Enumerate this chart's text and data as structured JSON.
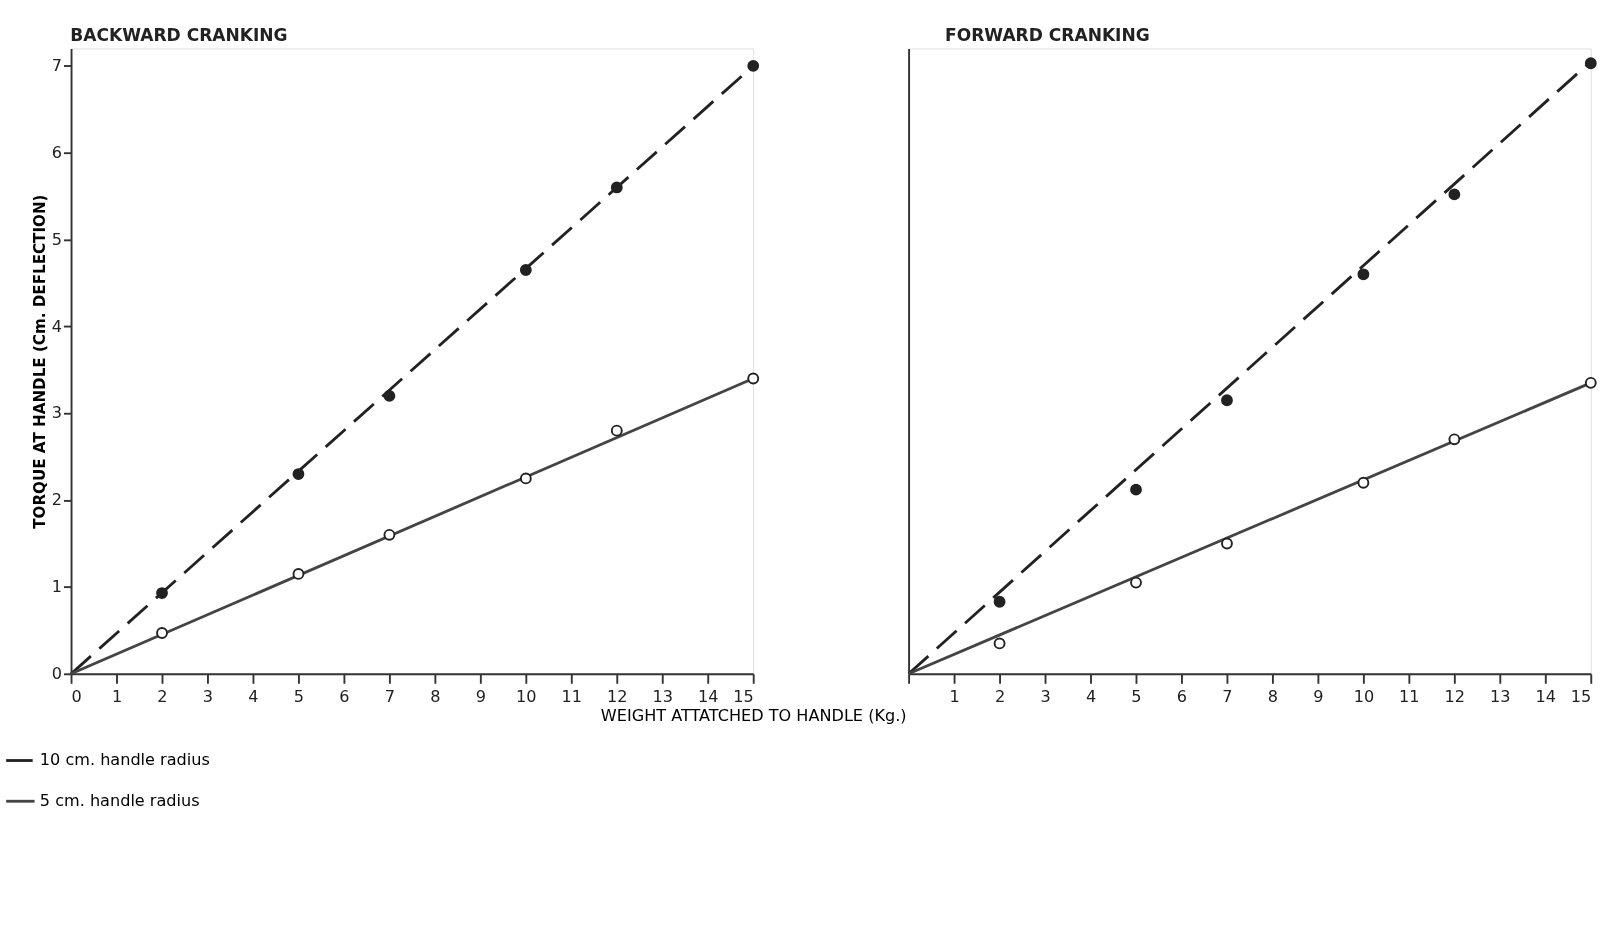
{
  "chart_data": [
    {
      "type": "scatter",
      "title": "BACKWARD CRANKING",
      "xlabel": "WEIGHT ATTATCHED TO HANDLE (Kg.)",
      "ylabel": "TORQUE AT HANDLE (Cm. DEFLECTION)",
      "xlim": [
        0,
        15
      ],
      "ylim": [
        0,
        7.2
      ],
      "xticks": [
        0,
        1,
        2,
        3,
        4,
        5,
        6,
        7,
        8,
        9,
        10,
        11,
        12,
        13,
        14,
        15
      ],
      "yticks": [
        0,
        1,
        2,
        3,
        4,
        5,
        6,
        7
      ],
      "grid": false,
      "legend": "bottom left",
      "series": [
        {
          "type": "line",
          "name": "10 cm. handle radius",
          "color": "#222222",
          "line_style": "dashed",
          "x": [
            0,
            15
          ],
          "values": [
            0,
            7.0
          ]
        },
        {
          "type": "line",
          "name": "5 cm. handle radius",
          "color": "#444444",
          "line_style": "solid",
          "x": [
            0,
            15
          ],
          "values": [
            0,
            3.4
          ]
        },
        {
          "marker": "circle",
          "color": "#222222",
          "x": [
            2,
            5,
            7,
            10,
            12,
            15
          ],
          "values": [
            0.93,
            2.3,
            3.2,
            4.65,
            5.6,
            7.0
          ]
        },
        {
          "marker": "circle",
          "color": "#ffffff",
          "x": [
            2,
            5,
            7,
            10,
            12,
            15
          ],
          "values": [
            0.47,
            1.15,
            1.6,
            2.25,
            2.8,
            3.4
          ]
        }
      ]
    },
    {
      "type": "scatter",
      "title": "FORWARD CRANKING",
      "tick_labels": "x",
      "xlim": [
        0,
        15
      ],
      "ylim": [
        0,
        7.2
      ],
      "xticks": [
        {
          "value": 0,
          "label": null
        },
        1,
        2,
        3,
        4,
        5,
        6,
        7,
        8,
        9,
        10,
        11,
        12,
        13,
        14,
        15
      ],
      "yticks": [
        0,
        1,
        2,
        3,
        4,
        5,
        6,
        7
      ],
      "grid": false,
      "series": [
        {
          "type": "line",
          "color": "#222222",
          "line_style": "dashed",
          "x": [
            0,
            15
          ],
          "values": [
            0,
            7.05
          ]
        },
        {
          "type": "line",
          "color": "#444444",
          "line_style": "solid",
          "x": [
            0,
            15
          ],
          "values": [
            0,
            3.35
          ]
        },
        {
          "marker": "circle",
          "color": "#222222",
          "x": [
            2,
            5,
            7,
            10,
            12,
            15
          ],
          "values": [
            0.83,
            2.12,
            3.15,
            4.6,
            5.52,
            7.03
          ]
        },
        {
          "marker": "circle",
          "color": "#ffffff",
          "x": [
            2,
            5,
            7,
            10,
            12,
            15
          ],
          "values": [
            0.35,
            1.05,
            1.5,
            2.2,
            2.7,
            3.35
          ]
        }
      ]
    }
  ]
}
